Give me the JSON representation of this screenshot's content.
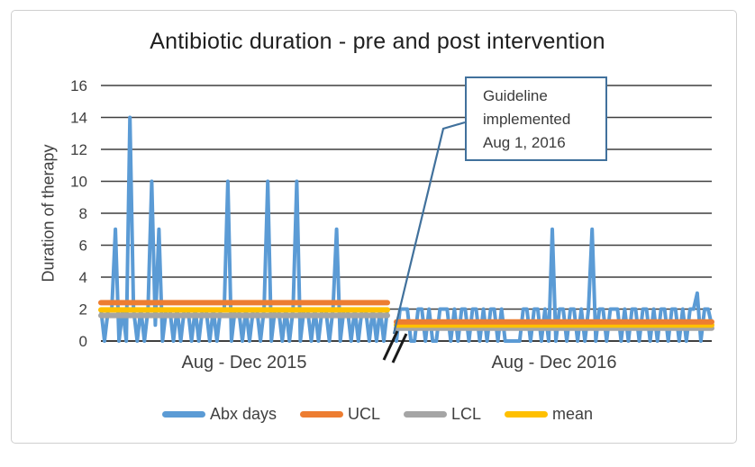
{
  "title": "Antibiotic duration - pre and post intervention",
  "y_axis": {
    "label": "Duration of therapy"
  },
  "x_axis": {
    "period1_label": "Aug - Dec 2015",
    "period2_label": "Aug - Dec 2016",
    "break_symbol": "//"
  },
  "annotation": {
    "line1": "Guideline",
    "line2": "implemented",
    "line3": "Aug 1, 2016"
  },
  "legend": [
    {
      "label": "Abx days",
      "color": "#5B9BD5"
    },
    {
      "label": "UCL",
      "color": "#ED7D31"
    },
    {
      "label": "LCL",
      "color": "#A5A5A5"
    },
    {
      "label": "mean",
      "color": "#FFC000"
    }
  ],
  "colors": {
    "abx_days": "#5B9BD5",
    "ucl": "#ED7D31",
    "lcl": "#A5A5A5",
    "mean": "#FFC000",
    "callout_border": "#41719C",
    "gridline": "#3f3f3f",
    "axis": "#000000"
  },
  "chart_data": {
    "type": "line",
    "title": "Antibiotic duration - pre and post intervention",
    "xlabel": "",
    "ylabel": "Duration of therapy",
    "ylim": [
      0,
      16
    ],
    "yticks": [
      0,
      2,
      4,
      6,
      8,
      10,
      12,
      14,
      16
    ],
    "grid": true,
    "legend_position": "bottom",
    "x_axis_break_between_segments": true,
    "annotation": {
      "text": "Guideline implemented Aug 1, 2016",
      "points_to": "start of Aug - Dec 2016 segment"
    },
    "series_colors": {
      "abx_days": "#5B9BD5",
      "ucl": "#ED7D31",
      "lcl": "#A5A5A5",
      "mean": "#FFC000"
    },
    "segments": [
      {
        "label": "Aug - Dec 2015",
        "ucl": 2.4,
        "mean": 1.95,
        "lcl": 1.6,
        "abx_days": [
          2,
          0,
          2,
          2,
          7,
          0,
          2,
          0,
          14,
          2,
          0,
          2,
          0,
          2,
          10,
          1,
          7,
          0,
          2,
          2,
          0,
          2,
          0,
          2,
          2,
          0,
          2,
          0,
          2,
          2,
          0,
          2,
          0,
          2,
          2,
          10,
          0,
          2,
          2,
          0,
          2,
          0,
          2,
          2,
          0,
          2,
          10,
          0,
          2,
          2,
          0,
          2,
          0,
          2,
          10,
          0,
          2,
          2,
          0,
          2,
          0,
          2,
          2,
          0,
          2,
          7,
          0,
          2,
          2,
          0,
          2,
          0,
          2,
          2,
          0,
          2,
          0,
          2,
          0,
          2
        ]
      },
      {
        "label": "Aug - Dec 2016",
        "ucl": 1.2,
        "mean": 1.0,
        "lcl": 0.8,
        "abx_days": [
          0,
          2,
          2,
          2,
          0,
          0,
          2,
          2,
          0,
          2,
          0,
          0,
          2,
          2,
          2,
          0,
          2,
          0,
          2,
          2,
          0,
          2,
          2,
          0,
          2,
          0,
          2,
          2,
          0,
          2,
          0,
          0,
          0,
          0,
          0,
          2,
          2,
          0,
          2,
          2,
          0,
          2,
          0,
          7,
          0,
          2,
          2,
          0,
          2,
          2,
          0,
          2,
          0,
          2,
          7,
          0,
          2,
          2,
          0,
          2,
          2,
          2,
          0,
          2,
          0,
          2,
          2,
          0,
          2,
          2,
          0,
          2,
          0,
          2,
          2,
          0,
          2,
          2,
          0,
          2,
          0,
          2,
          2,
          3,
          0,
          2,
          2,
          1
        ]
      }
    ]
  }
}
